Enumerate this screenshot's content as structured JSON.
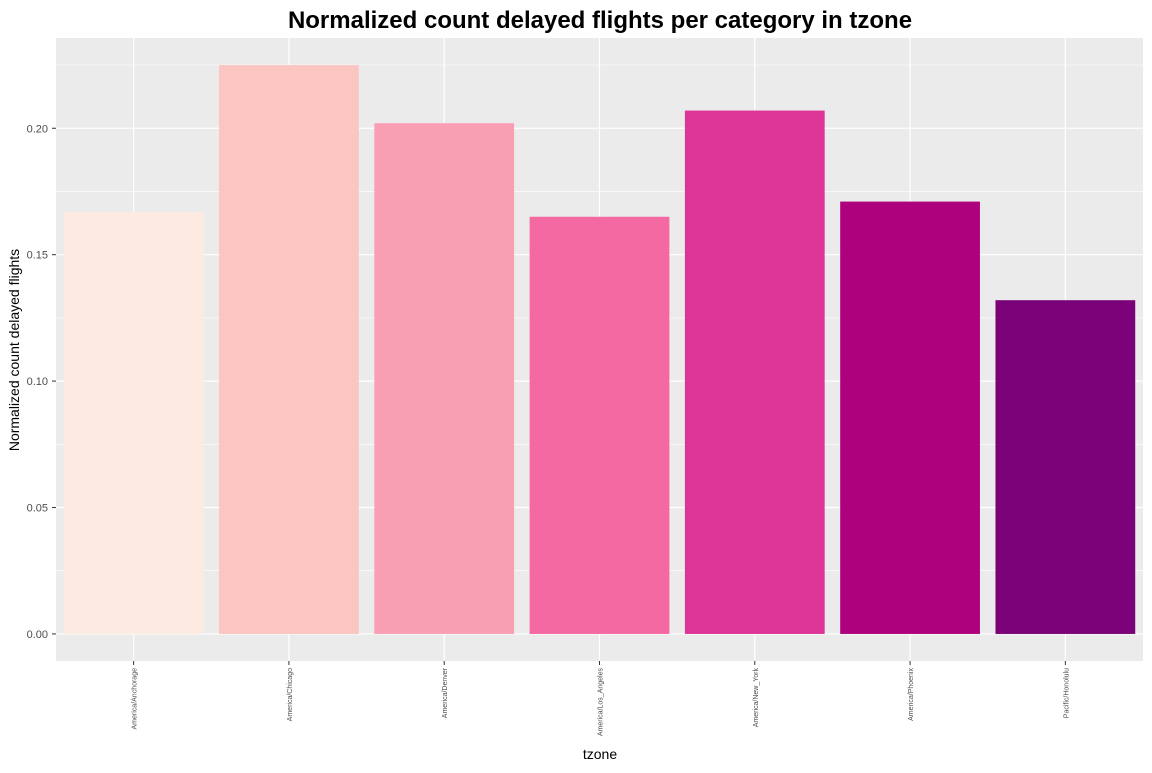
{
  "chart_data": {
    "type": "bar",
    "title": "Normalized count delayed flights per category in tzone",
    "xlabel": "tzone",
    "ylabel": "Normalized count delayed flights",
    "categories": [
      "America/Anchorage",
      "America/Chicago",
      "America/Denver",
      "America/Los_Angeles",
      "America/New_York",
      "America/Phoenix",
      "Pacific/Honolulu"
    ],
    "values": [
      0.167,
      0.225,
      0.202,
      0.165,
      0.207,
      0.171,
      0.132
    ],
    "bar_colors": [
      "#FDEBE1",
      "#FBC5C1",
      "#F99FB4",
      "#F569A2",
      "#DD3497",
      "#AE017E",
      "#7A0177"
    ],
    "ylim": [
      -0.0107,
      0.2357
    ],
    "yticks": [
      0.0,
      0.05,
      0.1,
      0.15,
      0.2
    ],
    "ytick_labels": [
      "0.00",
      "0.05",
      "0.10",
      "0.15",
      "0.20"
    ],
    "grid": true,
    "legend": "none",
    "panel_background": "#EBEBEB",
    "gridline_color": "#FFFFFF"
  }
}
